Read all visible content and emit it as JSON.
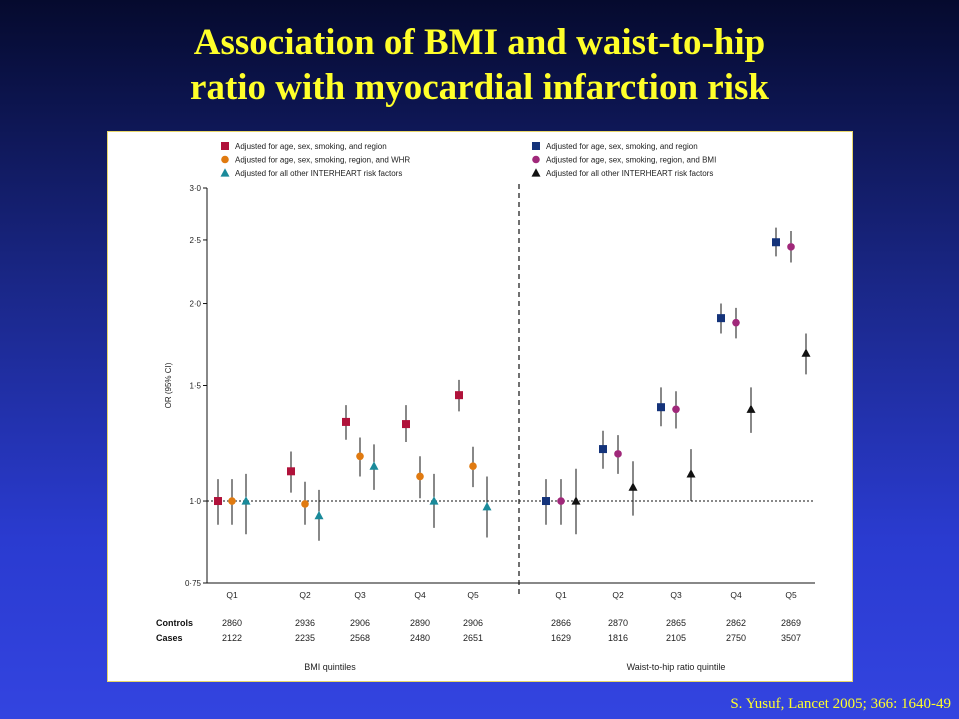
{
  "slide": {
    "title_line1": "Association of BMI and waist-to-hip",
    "title_line2": "ratio with myocardial infarction risk",
    "citation": "S. Yusuf, Lancet 2005; 366: 1640-49",
    "title_color": "#ffff2a"
  },
  "chart_data": {
    "type": "scatter",
    "ylabel": "OR (95% CI)",
    "ylim": [
      0.75,
      3.0
    ],
    "y_scale": "log",
    "y_ticks": [
      {
        "value": 0.75,
        "label": "0·75"
      },
      {
        "value": 1.0,
        "label": "1·0"
      },
      {
        "value": 1.5,
        "label": "1·5"
      },
      {
        "value": 2.0,
        "label": "2·0"
      },
      {
        "value": 2.5,
        "label": "2·5"
      },
      {
        "value": 3.0,
        "label": "3·0"
      }
    ],
    "reference_line": 1.0,
    "row_labels": {
      "controls": "Controls",
      "cases": "Cases"
    },
    "panels": [
      {
        "xlabel": "BMI quintiles",
        "categories": [
          "Q1",
          "Q2",
          "Q3",
          "Q4",
          "Q5"
        ],
        "controls": [
          "2860",
          "2936",
          "2906",
          "2890",
          "2906"
        ],
        "cases": [
          "2122",
          "2235",
          "2568",
          "2480",
          "2651"
        ],
        "series": [
          {
            "name": "Adjusted for age, sex, smoking, and region",
            "marker": "square",
            "color": "#b0123a",
            "values": [
              1.0,
              1.11,
              1.32,
              1.31,
              1.45
            ],
            "ci_low": [
              0.92,
              1.03,
              1.24,
              1.23,
              1.37
            ],
            "ci_high": [
              1.08,
              1.19,
              1.4,
              1.4,
              1.53
            ]
          },
          {
            "name": "Adjusted for age, sex, smoking, region, and WHR",
            "marker": "circle",
            "color": "#e07a10",
            "values": [
              1.0,
              0.99,
              1.17,
              1.09,
              1.13
            ],
            "ci_low": [
              0.92,
              0.92,
              1.09,
              1.01,
              1.05
            ],
            "ci_high": [
              1.08,
              1.07,
              1.25,
              1.17,
              1.21
            ]
          },
          {
            "name": "Adjusted for all other INTERHEART risk factors",
            "marker": "triangle",
            "color": "#1a8a9a",
            "values": [
              1.0,
              0.95,
              1.13,
              1.0,
              0.98
            ],
            "ci_low": [
              0.89,
              0.87,
              1.04,
              0.91,
              0.88
            ],
            "ci_high": [
              1.1,
              1.04,
              1.22,
              1.1,
              1.09
            ]
          }
        ]
      },
      {
        "xlabel": "Waist-to-hip ratio quintile",
        "categories": [
          "Q1",
          "Q2",
          "Q3",
          "Q4",
          "Q5"
        ],
        "controls": [
          "2866",
          "2870",
          "2865",
          "2862",
          "2869"
        ],
        "cases": [
          "1629",
          "1816",
          "2105",
          "2750",
          "3507"
        ],
        "series": [
          {
            "name": "Adjusted for age, sex, smoking, and region",
            "marker": "square",
            "color": "#14337a",
            "values": [
              1.0,
              1.2,
              1.39,
              1.9,
              2.48
            ],
            "ci_low": [
              0.92,
              1.12,
              1.3,
              1.8,
              2.36
            ],
            "ci_high": [
              1.08,
              1.28,
              1.49,
              2.0,
              2.61
            ]
          },
          {
            "name": "Adjusted for age, sex, smoking, region, and BMI",
            "marker": "circle",
            "color": "#a0287a",
            "values": [
              1.0,
              1.18,
              1.38,
              1.87,
              2.44
            ],
            "ci_low": [
              0.92,
              1.1,
              1.29,
              1.77,
              2.31
            ],
            "ci_high": [
              1.08,
              1.26,
              1.47,
              1.97,
              2.58
            ]
          },
          {
            "name": "Adjusted for all other INTERHEART risk factors",
            "marker": "triangle",
            "color": "#111111",
            "values": [
              1.0,
              1.05,
              1.1,
              1.38,
              1.68
            ],
            "ci_low": [
              0.89,
              0.95,
              1.0,
              1.27,
              1.56
            ],
            "ci_high": [
              1.12,
              1.15,
              1.2,
              1.49,
              1.8
            ]
          }
        ]
      }
    ]
  }
}
